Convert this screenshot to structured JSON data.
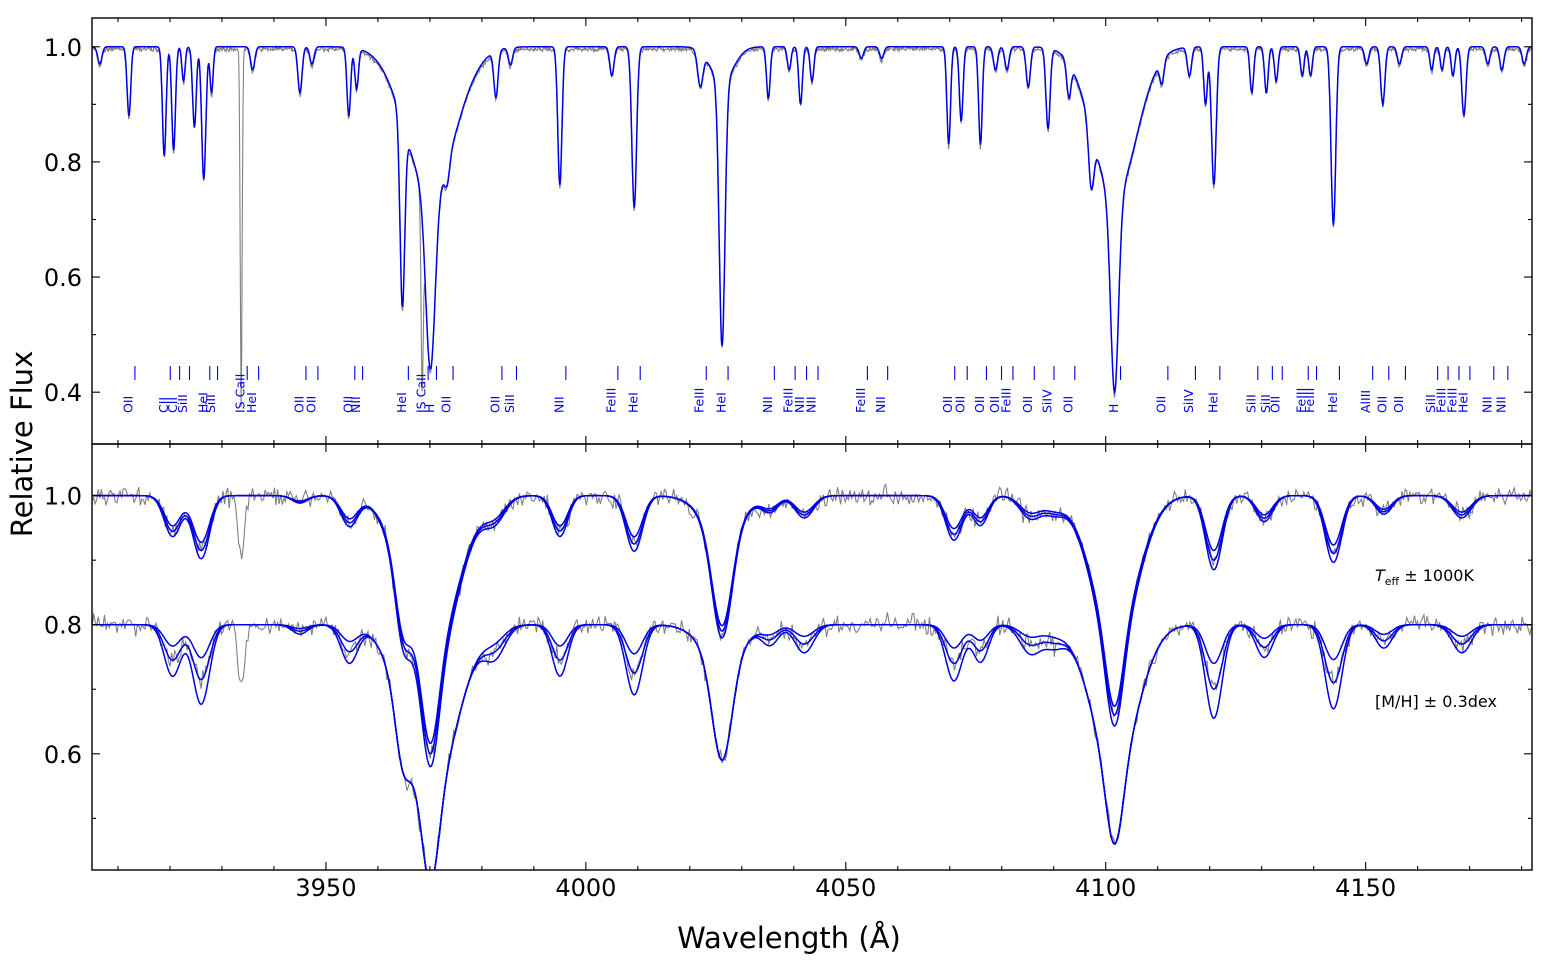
{
  "chart_data": {
    "type": "line",
    "xlabel": "Wavelength (Å)",
    "ylabel": "Relative Flux",
    "xlim": [
      3905,
      4182
    ],
    "x_ticks": [
      3950,
      4000,
      4050,
      4100,
      4150
    ],
    "panels": [
      {
        "id": "top",
        "ylim": [
          0.31,
          1.05
        ],
        "y_ticks": [
          0.4,
          0.6,
          0.8,
          1.0
        ],
        "series": [
          {
            "role": "observed",
            "color": "#808080"
          },
          {
            "role": "model",
            "color": "#0000e6"
          }
        ],
        "line_ids": [
          {
            "label": "OII",
            "x": 3912.1
          },
          {
            "label": "CII",
            "x": 3918.9
          },
          {
            "label": "CII",
            "x": 3920.7
          },
          {
            "label": "SiII",
            "x": 3922.6
          },
          {
            "label": "HeI",
            "x": 3926.5
          },
          {
            "label": "SiII",
            "x": 3928.0
          },
          {
            "label": "IS CaII",
            "x": 3933.7
          },
          {
            "label": "HeI",
            "x": 3935.9
          },
          {
            "label": "OII",
            "x": 3945.0
          },
          {
            "label": "OII",
            "x": 3947.3
          },
          {
            "label": "OII",
            "x": 3954.4
          },
          {
            "label": "NII",
            "x": 3955.9
          },
          {
            "label": "HeI",
            "x": 3964.7
          },
          {
            "label": "IS CaII",
            "x": 3968.5
          },
          {
            "label": "H",
            "x": 3970.1
          },
          {
            "label": "OII",
            "x": 3973.3
          },
          {
            "label": "OII",
            "x": 3982.7
          },
          {
            "label": "SiII",
            "x": 3985.5
          },
          {
            "label": "NII",
            "x": 3995.0
          },
          {
            "label": "FeIII",
            "x": 4005.0
          },
          {
            "label": "HeI",
            "x": 4009.3
          },
          {
            "label": "FeIII",
            "x": 4022.0
          },
          {
            "label": "HeI",
            "x": 4026.2
          },
          {
            "label": "NII",
            "x": 4035.1
          },
          {
            "label": "FeIII",
            "x": 4039.1
          },
          {
            "label": "NII",
            "x": 4041.3
          },
          {
            "label": "NII",
            "x": 4043.5
          },
          {
            "label": "FeIII",
            "x": 4053.0
          },
          {
            "label": "NII",
            "x": 4056.9
          },
          {
            "label": "OII",
            "x": 4069.8
          },
          {
            "label": "OII",
            "x": 4072.2
          },
          {
            "label": "OII",
            "x": 4075.9
          },
          {
            "label": "OII",
            "x": 4078.8
          },
          {
            "label": "FeIII",
            "x": 4081.0
          },
          {
            "label": "OII",
            "x": 4085.1
          },
          {
            "label": "SiIV",
            "x": 4088.9
          },
          {
            "label": "OII",
            "x": 4092.9
          },
          {
            "label": "H",
            "x": 4101.7
          },
          {
            "label": "OII",
            "x": 4110.8
          },
          {
            "label": "SiIV",
            "x": 4116.1
          },
          {
            "label": "HeI",
            "x": 4120.8
          },
          {
            "label": "SiII",
            "x": 4128.1
          },
          {
            "label": "SiII",
            "x": 4130.9
          },
          {
            "label": "OII",
            "x": 4132.8
          },
          {
            "label": "FeIII",
            "x": 4137.8
          },
          {
            "label": "FeIII",
            "x": 4139.4
          },
          {
            "label": "HeI",
            "x": 4143.8
          },
          {
            "label": "AlIII",
            "x": 4150.2
          },
          {
            "label": "OII",
            "x": 4153.3
          },
          {
            "label": "OII",
            "x": 4156.5
          },
          {
            "label": "SiII",
            "x": 4162.7
          },
          {
            "label": "FeIII",
            "x": 4164.7
          },
          {
            "label": "FeIII",
            "x": 4166.8
          },
          {
            "label": "HeI",
            "x": 4168.9
          },
          {
            "label": "NII",
            "x": 4173.5
          },
          {
            "label": "NII",
            "x": 4176.2
          }
        ]
      },
      {
        "id": "bottom",
        "ylim": [
          0.42,
          1.08
        ],
        "y_ticks": [
          0.6,
          0.8,
          1.0
        ],
        "groups": [
          {
            "id": "teff",
            "offset": 0.0,
            "annotation_base": "T",
            "annotation_sub": "eff",
            "annotation_rest": " ± 1000K",
            "annotation_x": 4140
          },
          {
            "id": "mh",
            "offset": -0.2,
            "annotation_base": "[M/H]",
            "annotation_sub": "",
            "annotation_rest": " ± 0.3dex",
            "annotation_x": 4140
          }
        ],
        "series": [
          {
            "role": "observed",
            "color": "#808080"
          },
          {
            "role": "models",
            "count": 3,
            "color": "#0000e6"
          }
        ]
      }
    ]
  }
}
